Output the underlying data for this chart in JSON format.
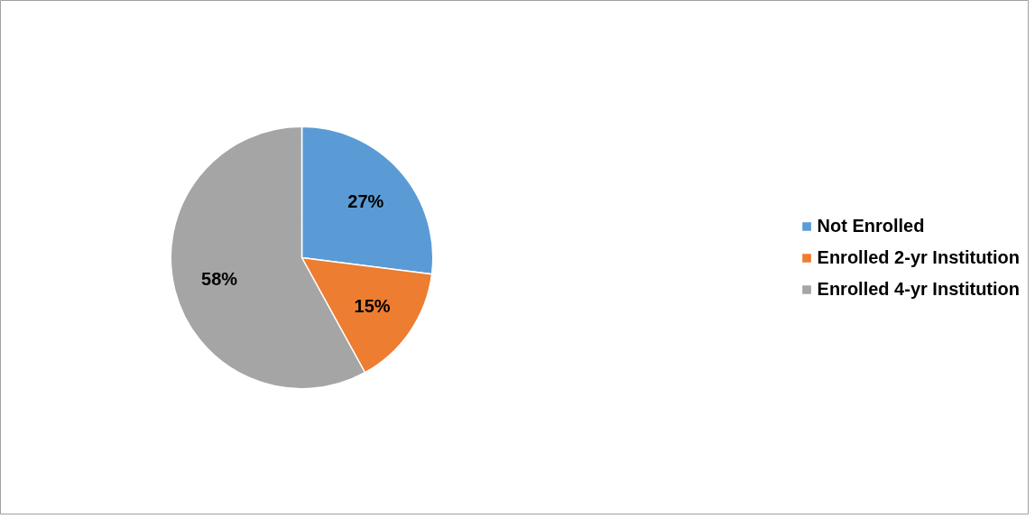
{
  "chart_data": {
    "type": "pie",
    "categories": [
      "Not Enrolled",
      "Enrolled 2-yr Institution",
      "Enrolled 4-yr Institution"
    ],
    "values": [
      27,
      15,
      58
    ],
    "colors": [
      "#5b9bd5",
      "#ed7d31",
      "#a5a5a5"
    ],
    "value_labels": [
      "27%",
      "15%",
      "58%"
    ],
    "legend": "right"
  }
}
